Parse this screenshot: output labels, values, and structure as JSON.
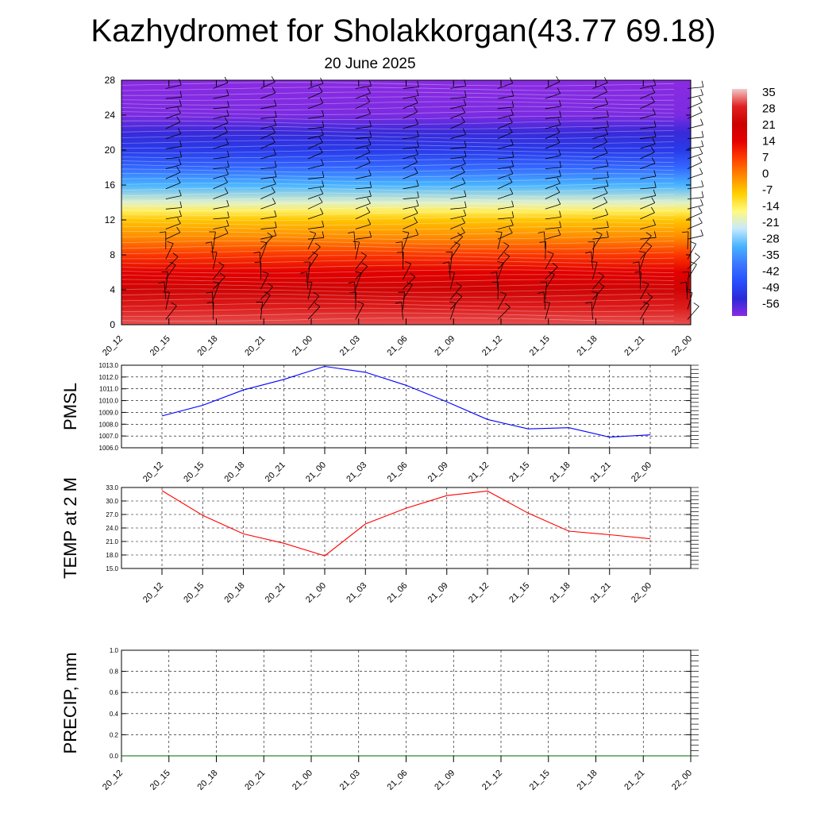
{
  "header": {
    "title": "Kazhydromet for Sholakkorgan(43.77 69.18)",
    "subtitle": "20 June 2025"
  },
  "colors": {
    "wind_barb": "#000000",
    "pmsl_line": "#0000ff",
    "temp_line": "#ff0000",
    "precip_line": "#006400",
    "grid": "#000000"
  },
  "chart_data": [
    {
      "id": "cross_section",
      "type": "heatmap",
      "title": "",
      "xlabel": "",
      "ylabel": "",
      "ylim": [
        0,
        28
      ],
      "yticks": [
        0,
        4,
        8,
        12,
        16,
        20,
        24,
        28
      ],
      "x_tick_labels": [
        "20_12",
        "20_15",
        "20_18",
        "20_21",
        "21_00",
        "21_03",
        "21_06",
        "21_09",
        "21_12",
        "21_15",
        "21_18",
        "21_21",
        "22_00"
      ],
      "colorbar": {
        "labels": [
          "35",
          "28",
          "21",
          "14",
          "7",
          "0",
          "-7",
          "-14",
          "-21",
          "-28",
          "-35",
          "-42",
          "-49",
          "-56"
        ],
        "colors": [
          "#f4c8c8",
          "#e02020",
          "#cc0000",
          "#e60000",
          "#ff4000",
          "#ff8a00",
          "#ffd000",
          "#fffa80",
          "#c8e8ff",
          "#48b4ff",
          "#3c78ff",
          "#2850ff",
          "#2a2ad8",
          "#8a2be2"
        ]
      },
      "field_profile_c": [
        {
          "level": 0,
          "temp": 30
        },
        {
          "level": 2,
          "temp": 27
        },
        {
          "level": 4,
          "temp": 22
        },
        {
          "level": 6,
          "temp": 15
        },
        {
          "level": 8,
          "temp": 8
        },
        {
          "level": 10,
          "temp": 0
        },
        {
          "level": 12,
          "temp": -6
        },
        {
          "level": 13,
          "temp": -12
        },
        {
          "level": 14,
          "temp": -18
        },
        {
          "level": 16,
          "temp": -28
        },
        {
          "level": 18,
          "temp": -38
        },
        {
          "level": 20,
          "temp": -46
        },
        {
          "level": 22,
          "temp": -50
        },
        {
          "level": 24,
          "temp": -55
        },
        {
          "level": 28,
          "temp": -57
        }
      ]
    },
    {
      "id": "pmsl",
      "type": "line",
      "title": "",
      "xlabel": "",
      "ylabel": "PMSL",
      "ylim": [
        1006,
        1013
      ],
      "yticks": [
        "1006.0",
        "1007.0",
        "1008.0",
        "1009.0",
        "1010.0",
        "1011.0",
        "1012.0",
        "1013.0"
      ],
      "x": [
        "20_12",
        "20_15",
        "20_18",
        "20_21",
        "21_00",
        "21_03",
        "21_06",
        "21_09",
        "21_12",
        "21_15",
        "21_18",
        "21_21",
        "22_00"
      ],
      "series": [
        {
          "values": [
            1008.7,
            1009.6,
            1010.9,
            1011.8,
            1012.9,
            1012.4,
            1011.3,
            1009.9,
            1008.4,
            1007.6,
            1007.7,
            1006.9,
            1007.1
          ]
        }
      ]
    },
    {
      "id": "temp2m",
      "type": "line",
      "title": "",
      "xlabel": "",
      "ylabel": "TEMP at 2 M",
      "ylim": [
        15,
        33
      ],
      "yticks": [
        "15.0",
        "18.0",
        "21.0",
        "24.0",
        "27.0",
        "30.0",
        "33.0"
      ],
      "x": [
        "20_12",
        "20_15",
        "20_18",
        "20_21",
        "21_00",
        "21_03",
        "21_06",
        "21_09",
        "21_12",
        "21_15",
        "21_18",
        "21_21",
        "22_00"
      ],
      "series": [
        {
          "values": [
            32.3,
            26.8,
            22.7,
            20.6,
            17.8,
            24.9,
            28.4,
            31.2,
            32.2,
            27.3,
            23.3,
            22.5,
            21.6
          ]
        }
      ]
    },
    {
      "id": "precip",
      "type": "line",
      "title": "",
      "xlabel": "",
      "ylabel": "PRECIP, mm",
      "ylim": [
        0,
        1
      ],
      "yticks": [
        "0.0",
        "0.2",
        "0.4",
        "0.6",
        "0.8",
        "1.0"
      ],
      "x_tick_labels": [
        "20_12",
        "20_15",
        "20_18",
        "20_21",
        "21_00",
        "21_03",
        "21_06",
        "21_09",
        "21_12",
        "21_15",
        "21_18",
        "21_21",
        "22_00"
      ],
      "series": [
        {
          "values": [
            0,
            0,
            0,
            0,
            0,
            0,
            0,
            0,
            0,
            0,
            0,
            0,
            0
          ]
        }
      ]
    }
  ]
}
